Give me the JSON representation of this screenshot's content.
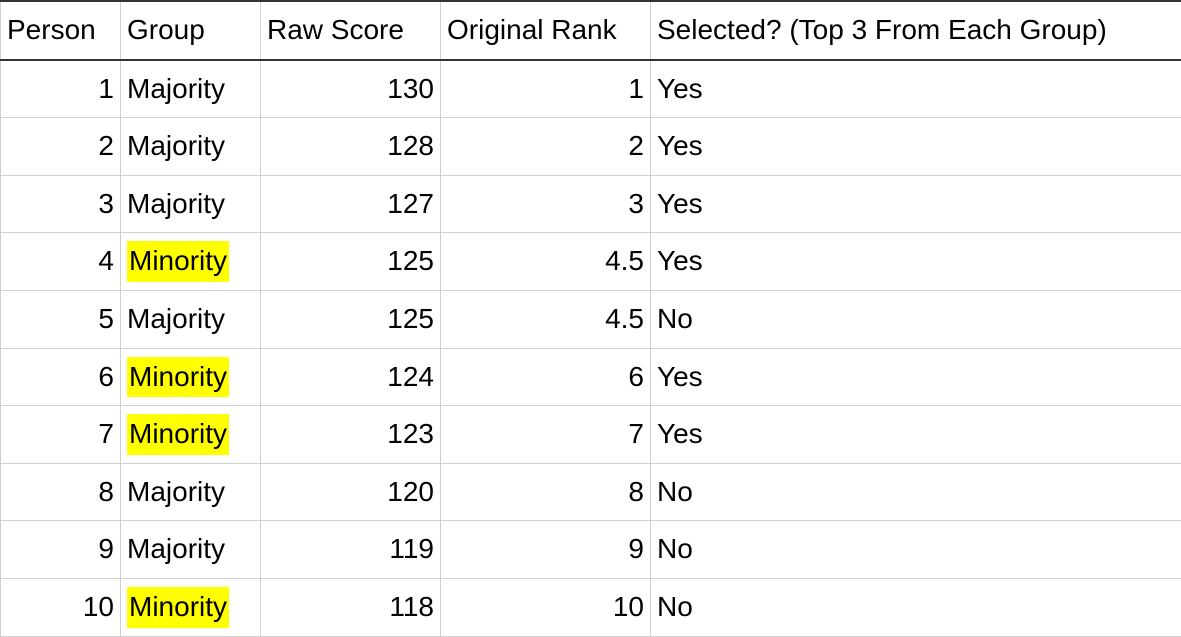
{
  "highlight_color": "#ffff00",
  "columns": [
    {
      "key": "person",
      "label": "Person",
      "align": "right"
    },
    {
      "key": "group",
      "label": "Group",
      "align": "left"
    },
    {
      "key": "score",
      "label": "Raw Score",
      "align": "right"
    },
    {
      "key": "rank",
      "label": "Original Rank",
      "align": "right"
    },
    {
      "key": "selected",
      "label": "Selected? (Top 3 From Each Group)",
      "align": "left"
    }
  ],
  "rows": [
    {
      "person": "1",
      "group": "Majority",
      "score": "130",
      "rank": "1",
      "selected": "Yes",
      "highlight_group": false
    },
    {
      "person": "2",
      "group": "Majority",
      "score": "128",
      "rank": "2",
      "selected": "Yes",
      "highlight_group": false
    },
    {
      "person": "3",
      "group": "Majority",
      "score": "127",
      "rank": "3",
      "selected": "Yes",
      "highlight_group": false
    },
    {
      "person": "4",
      "group": "Minority",
      "score": "125",
      "rank": "4.5",
      "selected": "Yes",
      "highlight_group": true
    },
    {
      "person": "5",
      "group": "Majority",
      "score": "125",
      "rank": "4.5",
      "selected": "No",
      "highlight_group": false
    },
    {
      "person": "6",
      "group": "Minority",
      "score": "124",
      "rank": "6",
      "selected": "Yes",
      "highlight_group": true
    },
    {
      "person": "7",
      "group": "Minority",
      "score": "123",
      "rank": "7",
      "selected": "Yes",
      "highlight_group": true
    },
    {
      "person": "8",
      "group": "Majority",
      "score": "120",
      "rank": "8",
      "selected": "No",
      "highlight_group": false
    },
    {
      "person": "9",
      "group": "Majority",
      "score": "119",
      "rank": "9",
      "selected": "No",
      "highlight_group": false
    },
    {
      "person": "10",
      "group": "Minority",
      "score": "118",
      "rank": "10",
      "selected": "No",
      "highlight_group": true
    }
  ]
}
